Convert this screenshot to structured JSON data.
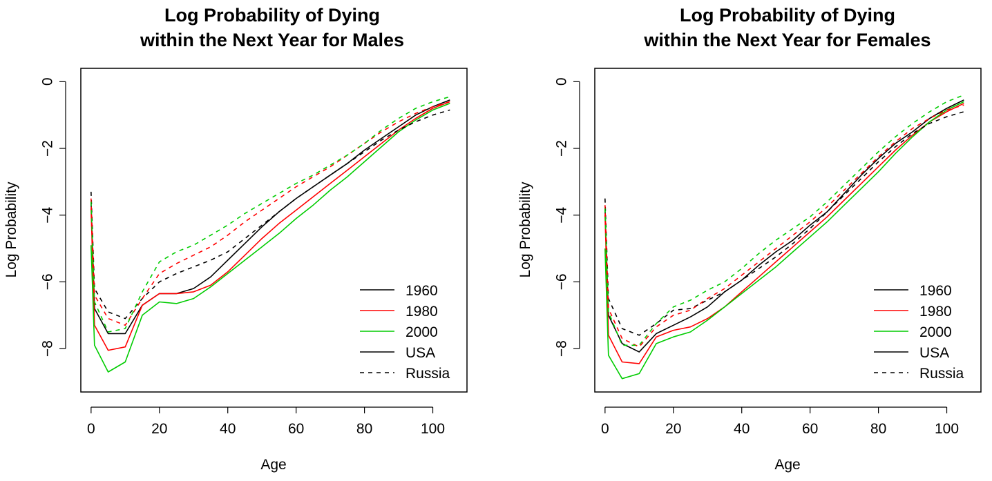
{
  "colors": {
    "1960": "#000000",
    "1980": "#ff0000",
    "2000": "#00cc00"
  },
  "legend": {
    "entries": [
      {
        "label": "1960",
        "color": "#000000",
        "dash": false
      },
      {
        "label": "1980",
        "color": "#ff0000",
        "dash": false
      },
      {
        "label": "2000",
        "color": "#00cc00",
        "dash": false
      },
      {
        "label": "USA",
        "color": "#000000",
        "dash": false
      },
      {
        "label": "Russia",
        "color": "#000000",
        "dash": true
      }
    ]
  },
  "chart_data": [
    {
      "type": "line",
      "title_lines": [
        "Log Probability of Dying",
        "within the Next Year for Males"
      ],
      "xlabel": "Age",
      "ylabel": "Log Probability",
      "xlim": [
        -3,
        110
      ],
      "ylim": [
        -9.3,
        0.4
      ],
      "xticks": [
        0,
        20,
        40,
        60,
        80,
        100
      ],
      "yticks": [
        0,
        -2,
        -4,
        -6,
        -8
      ],
      "x": [
        0,
        1,
        5,
        10,
        15,
        20,
        25,
        30,
        35,
        40,
        45,
        50,
        55,
        60,
        65,
        70,
        75,
        80,
        85,
        90,
        95,
        100,
        105
      ],
      "series": [
        {
          "name": "USA 1960",
          "country": "USA",
          "year": "1960",
          "values": [
            -3.6,
            -6.8,
            -7.55,
            -7.55,
            -6.7,
            -6.35,
            -6.35,
            -6.2,
            -5.85,
            -5.35,
            -4.85,
            -4.35,
            -3.9,
            -3.5,
            -3.15,
            -2.8,
            -2.45,
            -2.05,
            -1.7,
            -1.35,
            -1.0,
            -0.75,
            -0.55
          ]
        },
        {
          "name": "USA 1980",
          "country": "USA",
          "year": "1980",
          "values": [
            -3.8,
            -7.3,
            -8.05,
            -7.95,
            -6.7,
            -6.35,
            -6.35,
            -6.3,
            -6.1,
            -5.7,
            -5.2,
            -4.7,
            -4.25,
            -3.85,
            -3.45,
            -3.05,
            -2.65,
            -2.25,
            -1.85,
            -1.45,
            -1.1,
            -0.8,
            -0.6
          ]
        },
        {
          "name": "USA 2000",
          "country": "USA",
          "year": "2000",
          "values": [
            -4.9,
            -7.9,
            -8.7,
            -8.4,
            -7.0,
            -6.6,
            -6.65,
            -6.5,
            -6.15,
            -5.75,
            -5.35,
            -4.95,
            -4.55,
            -4.1,
            -3.7,
            -3.25,
            -2.85,
            -2.4,
            -1.95,
            -1.5,
            -1.15,
            -0.85,
            -0.65
          ]
        },
        {
          "name": "Russia 1960",
          "country": "Russia",
          "year": "1960",
          "values": [
            -3.3,
            -6.2,
            -6.9,
            -7.1,
            -6.5,
            -6.0,
            -5.75,
            -5.55,
            -5.35,
            -5.1,
            -4.7,
            -4.3,
            -3.9,
            -3.5,
            -3.15,
            -2.8,
            -2.45,
            -2.1,
            -1.75,
            -1.45,
            -1.2,
            -1.0,
            -0.85
          ]
        },
        {
          "name": "Russia 1980",
          "country": "Russia",
          "year": "1980",
          "values": [
            -3.5,
            -6.4,
            -7.1,
            -7.3,
            -6.5,
            -5.75,
            -5.45,
            -5.2,
            -4.95,
            -4.6,
            -4.2,
            -3.85,
            -3.5,
            -3.15,
            -2.85,
            -2.55,
            -2.2,
            -1.85,
            -1.5,
            -1.2,
            -0.95,
            -0.75,
            -0.6
          ]
        },
        {
          "name": "Russia 2000",
          "country": "Russia",
          "year": "2000",
          "values": [
            -3.6,
            -6.6,
            -7.5,
            -7.4,
            -6.3,
            -5.4,
            -5.1,
            -4.9,
            -4.6,
            -4.3,
            -3.95,
            -3.65,
            -3.35,
            -3.05,
            -2.8,
            -2.5,
            -2.2,
            -1.85,
            -1.45,
            -1.1,
            -0.8,
            -0.6,
            -0.45
          ]
        }
      ]
    },
    {
      "type": "line",
      "title_lines": [
        "Log Probability of Dying",
        "within the Next Year for Females"
      ],
      "xlabel": "Age",
      "ylabel": "Log Probability",
      "xlim": [
        -3,
        110
      ],
      "ylim": [
        -9.3,
        0.4
      ],
      "xticks": [
        0,
        20,
        40,
        60,
        80,
        100
      ],
      "yticks": [
        0,
        -2,
        -4,
        -6,
        -8
      ],
      "x": [
        0,
        1,
        5,
        10,
        15,
        20,
        25,
        30,
        35,
        40,
        45,
        50,
        55,
        60,
        65,
        70,
        75,
        80,
        85,
        90,
        95,
        100,
        105
      ],
      "series": [
        {
          "name": "USA 1960",
          "country": "USA",
          "year": "1960",
          "values": [
            -3.8,
            -7.0,
            -7.85,
            -8.1,
            -7.55,
            -7.3,
            -7.05,
            -6.75,
            -6.3,
            -5.95,
            -5.5,
            -5.1,
            -4.75,
            -4.3,
            -3.9,
            -3.35,
            -2.8,
            -2.3,
            -1.85,
            -1.5,
            -1.1,
            -0.8,
            -0.55
          ]
        },
        {
          "name": "USA 1980",
          "country": "USA",
          "year": "1980",
          "values": [
            -4.0,
            -7.6,
            -8.4,
            -8.45,
            -7.65,
            -7.45,
            -7.35,
            -7.1,
            -6.75,
            -6.3,
            -5.85,
            -5.4,
            -4.95,
            -4.5,
            -4.05,
            -3.55,
            -3.05,
            -2.55,
            -2.05,
            -1.6,
            -1.2,
            -0.9,
            -0.65
          ]
        },
        {
          "name": "USA 2000",
          "country": "USA",
          "year": "2000",
          "values": [
            -5.0,
            -8.2,
            -8.9,
            -8.75,
            -7.85,
            -7.65,
            -7.5,
            -7.15,
            -6.75,
            -6.35,
            -5.95,
            -5.55,
            -5.1,
            -4.65,
            -4.2,
            -3.7,
            -3.2,
            -2.7,
            -2.15,
            -1.65,
            -1.2,
            -0.85,
            -0.6
          ]
        },
        {
          "name": "Russia 1960",
          "country": "Russia",
          "year": "1960",
          "values": [
            -3.5,
            -6.5,
            -7.4,
            -7.6,
            -7.25,
            -6.85,
            -6.8,
            -6.55,
            -6.3,
            -5.95,
            -5.6,
            -5.25,
            -4.85,
            -4.4,
            -3.9,
            -3.4,
            -2.9,
            -2.4,
            -1.95,
            -1.55,
            -1.25,
            -1.05,
            -0.9
          ]
        },
        {
          "name": "Russia 1980",
          "country": "Russia",
          "year": "1980",
          "values": [
            -3.7,
            -6.8,
            -7.7,
            -7.95,
            -7.35,
            -7.0,
            -6.85,
            -6.5,
            -6.2,
            -5.8,
            -5.4,
            -5.0,
            -4.6,
            -4.2,
            -3.75,
            -3.25,
            -2.75,
            -2.25,
            -1.8,
            -1.4,
            -1.1,
            -0.85,
            -0.7
          ]
        },
        {
          "name": "Russia 2000",
          "country": "Russia",
          "year": "2000",
          "values": [
            -3.8,
            -6.9,
            -7.9,
            -7.9,
            -7.25,
            -6.75,
            -6.55,
            -6.25,
            -6.0,
            -5.6,
            -5.15,
            -4.75,
            -4.4,
            -4.05,
            -3.6,
            -3.1,
            -2.6,
            -2.1,
            -1.65,
            -1.25,
            -0.9,
            -0.6,
            -0.4
          ]
        }
      ]
    }
  ]
}
